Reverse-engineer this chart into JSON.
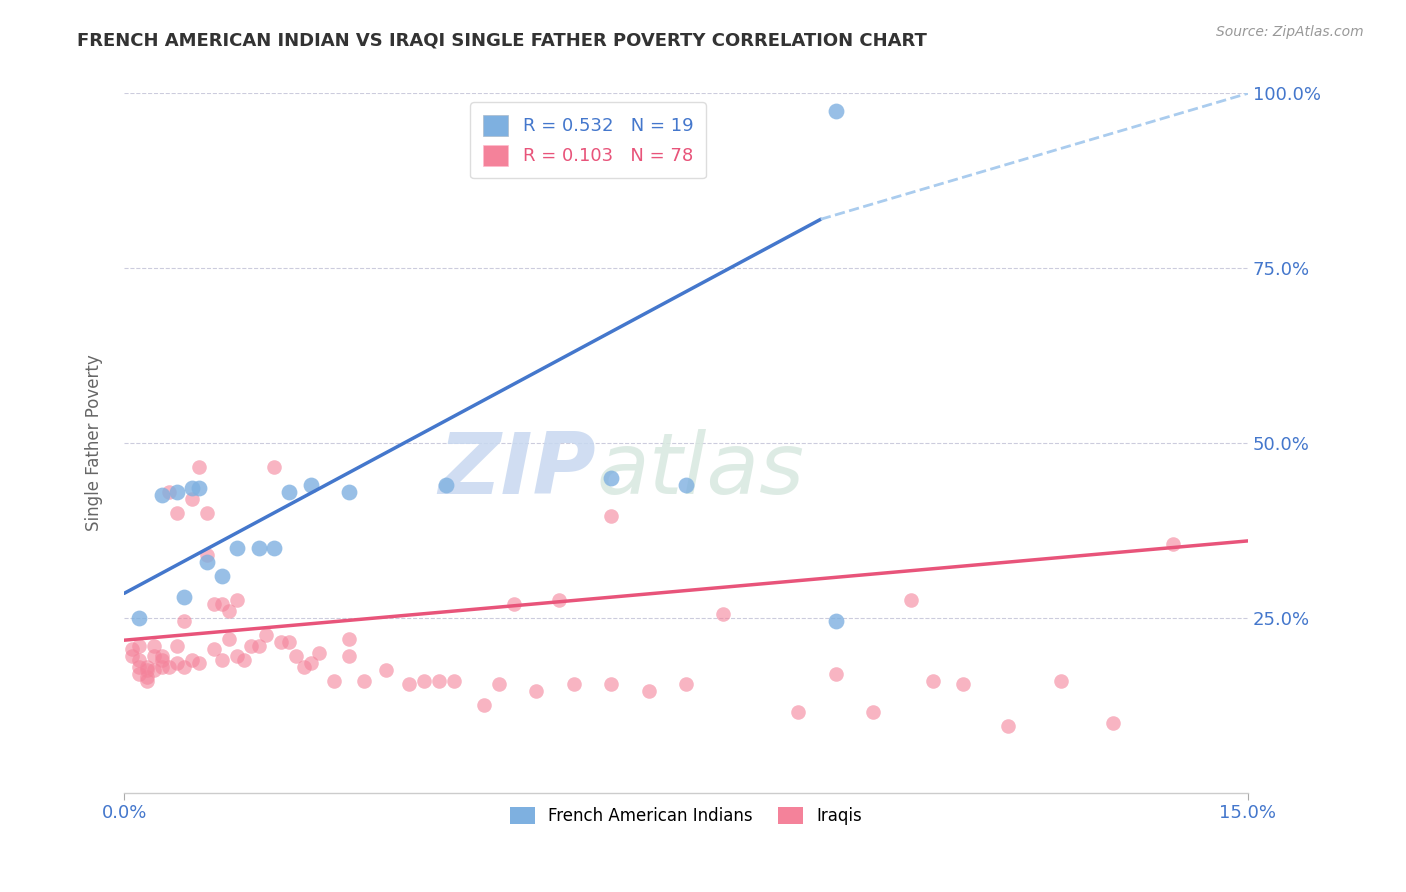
{
  "title": "FRENCH AMERICAN INDIAN VS IRAQI SINGLE FATHER POVERTY CORRELATION CHART",
  "source": "Source: ZipAtlas.com",
  "ylabel": "Single Father Poverty",
  "xlim": [
    0.0,
    0.15
  ],
  "ylim": [
    0.0,
    1.0
  ],
  "xtick_labels": [
    "0.0%",
    "15.0%"
  ],
  "xtick_positions": [
    0.0,
    0.15
  ],
  "ytick_labels": [
    "25.0%",
    "50.0%",
    "75.0%",
    "100.0%"
  ],
  "ytick_positions": [
    0.25,
    0.5,
    0.75,
    1.0
  ],
  "blue_R": 0.532,
  "blue_N": 19,
  "pink_R": 0.103,
  "pink_N": 78,
  "blue_color": "#7EB0E0",
  "pink_color": "#F4829A",
  "blue_line_color": "#4477CC",
  "pink_line_color": "#E8547A",
  "dashed_line_color": "#AACCEE",
  "watermark_zip": "ZIP",
  "watermark_atlas": "atlas",
  "blue_scatter_x": [
    0.002,
    0.005,
    0.007,
    0.008,
    0.009,
    0.01,
    0.011,
    0.013,
    0.015,
    0.018,
    0.02,
    0.022,
    0.025,
    0.03,
    0.043,
    0.065,
    0.075,
    0.095,
    0.095
  ],
  "blue_scatter_y": [
    0.25,
    0.425,
    0.43,
    0.28,
    0.435,
    0.435,
    0.33,
    0.31,
    0.35,
    0.35,
    0.35,
    0.43,
    0.44,
    0.43,
    0.44,
    0.45,
    0.44,
    0.245,
    0.975
  ],
  "pink_scatter_x": [
    0.001,
    0.001,
    0.002,
    0.002,
    0.002,
    0.002,
    0.003,
    0.003,
    0.003,
    0.003,
    0.004,
    0.004,
    0.004,
    0.005,
    0.005,
    0.005,
    0.006,
    0.006,
    0.007,
    0.007,
    0.007,
    0.008,
    0.008,
    0.009,
    0.009,
    0.01,
    0.01,
    0.011,
    0.011,
    0.012,
    0.012,
    0.013,
    0.013,
    0.014,
    0.014,
    0.015,
    0.015,
    0.016,
    0.017,
    0.018,
    0.019,
    0.02,
    0.021,
    0.022,
    0.023,
    0.024,
    0.025,
    0.026,
    0.028,
    0.03,
    0.03,
    0.032,
    0.035,
    0.038,
    0.04,
    0.042,
    0.044,
    0.048,
    0.05,
    0.052,
    0.055,
    0.058,
    0.06,
    0.065,
    0.065,
    0.07,
    0.075,
    0.08,
    0.09,
    0.095,
    0.1,
    0.105,
    0.108,
    0.112,
    0.118,
    0.125,
    0.132,
    0.14
  ],
  "pink_scatter_y": [
    0.195,
    0.205,
    0.17,
    0.18,
    0.19,
    0.21,
    0.16,
    0.165,
    0.175,
    0.18,
    0.175,
    0.195,
    0.21,
    0.18,
    0.19,
    0.195,
    0.18,
    0.43,
    0.185,
    0.21,
    0.4,
    0.18,
    0.245,
    0.19,
    0.42,
    0.185,
    0.465,
    0.34,
    0.4,
    0.205,
    0.27,
    0.19,
    0.27,
    0.22,
    0.26,
    0.195,
    0.275,
    0.19,
    0.21,
    0.21,
    0.225,
    0.465,
    0.215,
    0.215,
    0.195,
    0.18,
    0.185,
    0.2,
    0.16,
    0.195,
    0.22,
    0.16,
    0.175,
    0.155,
    0.16,
    0.16,
    0.16,
    0.125,
    0.155,
    0.27,
    0.145,
    0.275,
    0.155,
    0.155,
    0.395,
    0.145,
    0.155,
    0.255,
    0.115,
    0.17,
    0.115,
    0.275,
    0.16,
    0.155,
    0.095,
    0.16,
    0.1,
    0.355
  ],
  "blue_line_x0": 0.0,
  "blue_line_y0": 0.285,
  "blue_line_x1": 0.093,
  "blue_line_y1": 0.82,
  "pink_line_x0": 0.0,
  "pink_line_y0": 0.218,
  "pink_line_x1": 0.15,
  "pink_line_y1": 0.36,
  "dashed_line_x0": 0.093,
  "dashed_line_y0": 0.82,
  "dashed_line_x1": 0.15,
  "dashed_line_y1": 1.0
}
